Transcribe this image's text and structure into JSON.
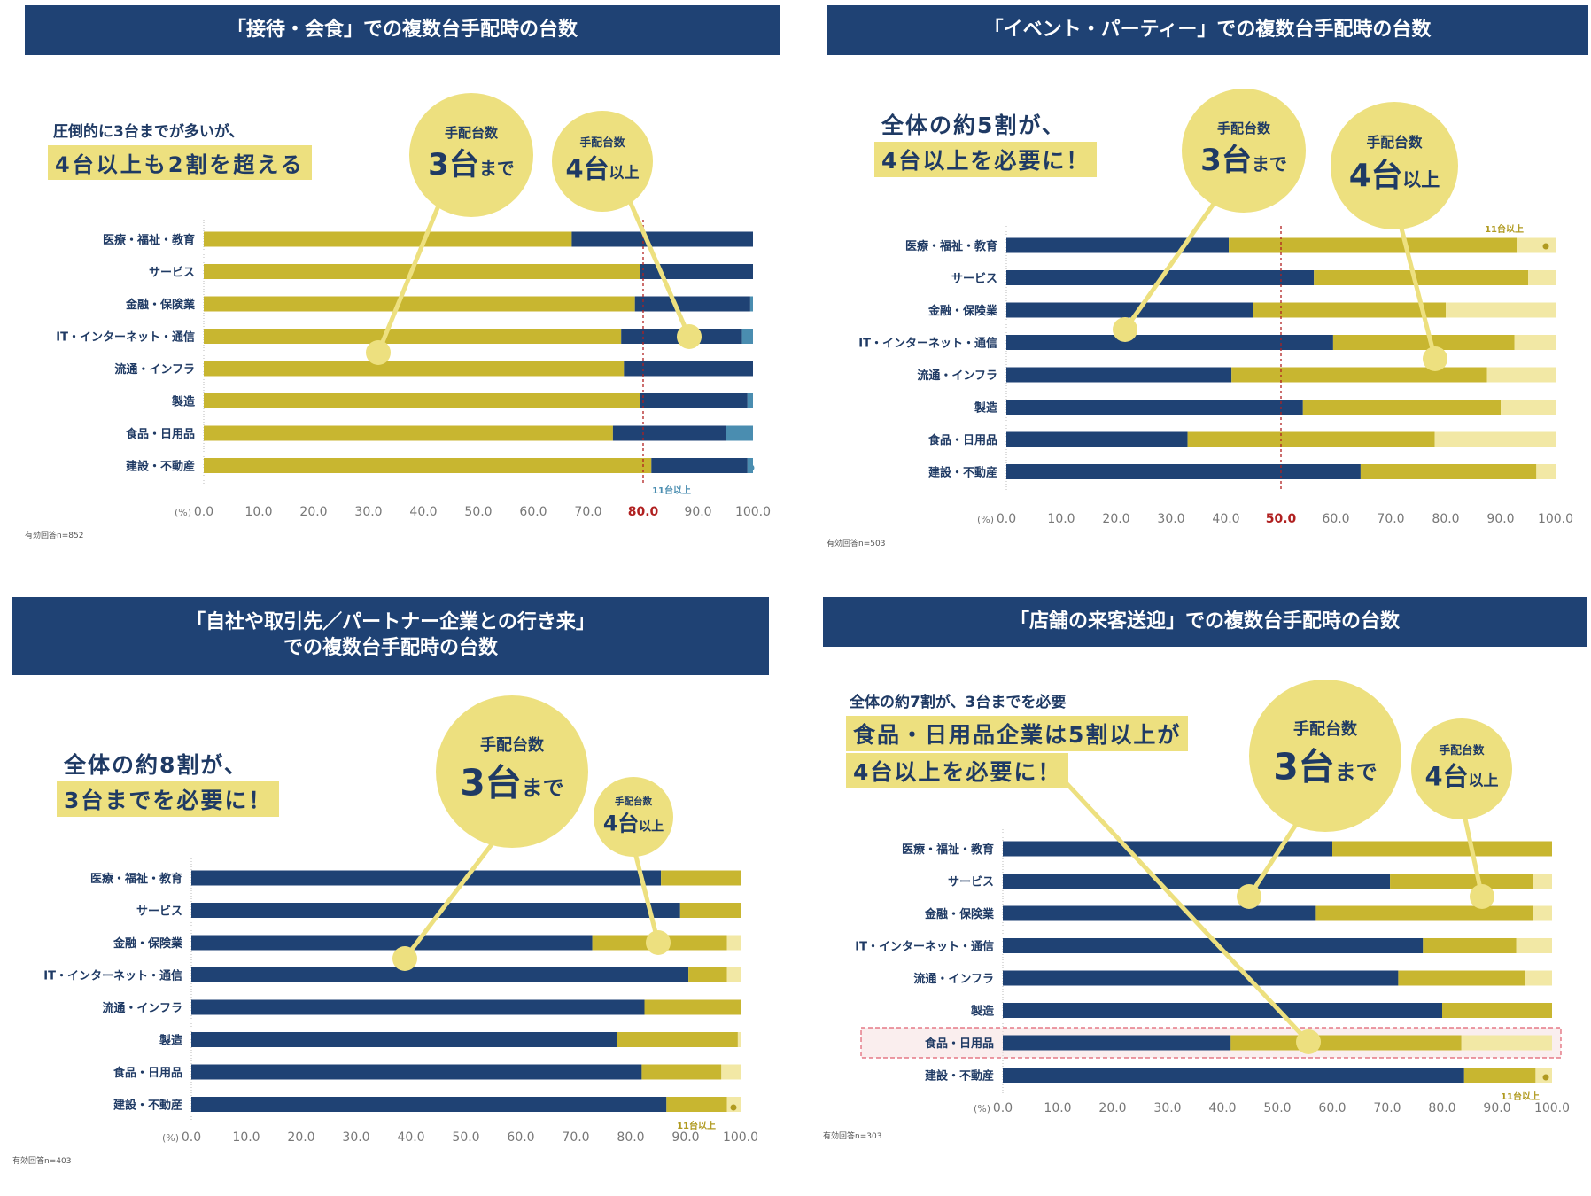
{
  "colors": {
    "navy": "#1f4274",
    "olive": "#c8b630",
    "paleyellow": "#f2e8a5",
    "teal": "#4a8db0",
    "bubble": "#ede07f",
    "red": "#b02020",
    "pinkbox": "#f6dede"
  },
  "legend_circles": {
    "label_top": "手配台数",
    "upto3_num": "3台",
    "upto3_suffix": "まで",
    "over4_num": "4台",
    "over4_suffix": "以上"
  },
  "unit_label": "(%)",
  "note_11": "11台以上",
  "panels": [
    {
      "id": "p1",
      "title_lines": [
        "「接待・会食」での複数台手配時の台数"
      ],
      "headline_plain": "圧倒的に3台までが多いが、",
      "headline_hl": [
        "4台以上も2割を超える"
      ],
      "n_note": "有効回答n=852"
    },
    {
      "id": "p2",
      "title_lines": [
        "「イベント・パーティー」での複数台手配時の台数"
      ],
      "headline_plain": "",
      "headline_hl": [
        "全体の約5割が、",
        "4台以上を必要に！"
      ],
      "n_note": "有効回答n=503"
    },
    {
      "id": "p3",
      "title_lines": [
        "「自社や取引先／パートナー企業との行き来」",
        "での複数台手配時の台数"
      ],
      "headline_plain": "",
      "headline_hl": [
        "全体の約8割が、",
        "3台までを必要に！"
      ],
      "n_note": "有効回答n=403"
    },
    {
      "id": "p4",
      "title_lines": [
        "「店舗の来客送迎」での複数台手配時の台数"
      ],
      "headline_plain": "全体の約7割が、3台までを必要",
      "headline_hl": [
        "食品・日用品企業は5割以上が",
        "4台以上を必要に！"
      ],
      "n_note": "有効回答n=303"
    }
  ],
  "chart_data": [
    {
      "type": "bar",
      "orientation": "horizontal",
      "stacked": true,
      "title": "「接待・会食」での複数台手配時の台数",
      "categories": [
        "医療・福祉・教育",
        "サービス",
        "金融・保険業",
        "IT・インターネット・通信",
        "流通・インフラ",
        "製造",
        "食品・日用品",
        "建設・不動産"
      ],
      "series": [
        {
          "color": "#c8b630",
          "values": [
            67,
            79.5,
            78.5,
            76,
            76.5,
            79.5,
            74.5,
            81.5
          ]
        },
        {
          "color": "#1f4274",
          "values": [
            33,
            20.5,
            21,
            22,
            23.5,
            19.5,
            20.5,
            17.5
          ]
        },
        {
          "color": "#4a8db0",
          "values": [
            0,
            0,
            0.5,
            2,
            0,
            1,
            5,
            1
          ]
        }
      ],
      "xlim": [
        0,
        100
      ],
      "xticks": [
        "0.0",
        "10.0",
        "20.0",
        "30.0",
        "40.0",
        "50.0",
        "60.0",
        "70.0",
        "80.0",
        "90.0",
        "100.0"
      ],
      "reference_line": 80,
      "reference_label": "80.0",
      "grid": false
    },
    {
      "type": "bar",
      "orientation": "horizontal",
      "stacked": true,
      "title": "「イベント・パーティー」での複数台手配時の台数",
      "categories": [
        "医療・福祉・教育",
        "サービス",
        "金融・保険業",
        "IT・インターネット・通信",
        "流通・インフラ",
        "製造",
        "食品・日用品",
        "建設・不動産"
      ],
      "series": [
        {
          "color": "#1f4274",
          "values": [
            40.5,
            56,
            45,
            59.5,
            41,
            54,
            33,
            64.5
          ]
        },
        {
          "color": "#c8b630",
          "values": [
            52.5,
            39,
            35,
            33,
            46.5,
            36,
            45,
            32
          ]
        },
        {
          "color": "#f2e8a5",
          "values": [
            7,
            5,
            20,
            7.5,
            12.5,
            10,
            22,
            3.5
          ]
        }
      ],
      "xlim": [
        0,
        100
      ],
      "xticks": [
        "0.0",
        "10.0",
        "20.0",
        "30.0",
        "40.0",
        "50.0",
        "60.0",
        "70.0",
        "80.0",
        "90.0",
        "100.0"
      ],
      "reference_line": 50,
      "reference_label": "50.0",
      "grid": false
    },
    {
      "type": "bar",
      "orientation": "horizontal",
      "stacked": true,
      "title": "「自社や取引先／パートナー企業との行き来」での複数台手配時の台数",
      "categories": [
        "医療・福祉・教育",
        "サービス",
        "金融・保険業",
        "IT・インターネット・通信",
        "流通・インフラ",
        "製造",
        "食品・日用品",
        "建設・不動産"
      ],
      "series": [
        {
          "color": "#1f4274",
          "values": [
            85.5,
            89,
            73,
            90.5,
            82.5,
            77.5,
            82,
            86.5
          ]
        },
        {
          "color": "#c8b630",
          "values": [
            14.5,
            11,
            24.5,
            7,
            17.5,
            22,
            14.5,
            11
          ]
        },
        {
          "color": "#f2e8a5",
          "values": [
            0,
            0,
            2.5,
            2.5,
            0,
            0.5,
            3.5,
            2.5
          ]
        }
      ],
      "xlim": [
        0,
        100
      ],
      "xticks": [
        "0.0",
        "10.0",
        "20.0",
        "30.0",
        "40.0",
        "50.0",
        "60.0",
        "70.0",
        "80.0",
        "90.0",
        "100.0"
      ],
      "grid": false
    },
    {
      "type": "bar",
      "orientation": "horizontal",
      "stacked": true,
      "title": "「店舗の来客送迎」での複数台手配時の台数",
      "categories": [
        "医療・福祉・教育",
        "サービス",
        "金融・保険業",
        "IT・インターネット・通信",
        "流通・インフラ",
        "製造",
        "食品・日用品",
        "建設・不動産"
      ],
      "series": [
        {
          "color": "#1f4274",
          "values": [
            60,
            70.5,
            57,
            76.5,
            72,
            80,
            41.5,
            84
          ]
        },
        {
          "color": "#c8b630",
          "values": [
            40,
            26,
            39.5,
            17,
            23,
            20,
            42,
            13
          ]
        },
        {
          "color": "#f2e8a5",
          "values": [
            0,
            3.5,
            3.5,
            6.5,
            5,
            0,
            16.5,
            3
          ]
        }
      ],
      "xlim": [
        0,
        100
      ],
      "xticks": [
        "0.0",
        "10.0",
        "20.0",
        "30.0",
        "40.0",
        "50.0",
        "60.0",
        "70.0",
        "80.0",
        "90.0",
        "100.0"
      ],
      "highlight_category": "食品・日用品",
      "grid": false
    }
  ]
}
